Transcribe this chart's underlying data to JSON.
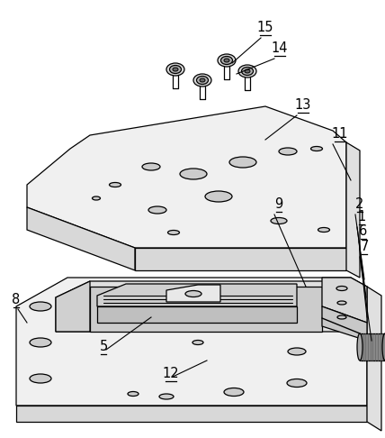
{
  "bg_color": "#ffffff",
  "line_color": "#000000",
  "upper_plate_color": "#f0f0f0",
  "upper_front_color": "#d8d8d8",
  "upper_side_color": "#e0e0e0",
  "lower_top_color": "#f0f0f0",
  "lower_front_color": "#d8d8d8",
  "lower_side_color": "#e0e0e0",
  "hole_color": "#cccccc",
  "inner_color": "#aaaaaa",
  "slot_color": "#bbbbbb",
  "knob_color": "#888888",
  "bracket_color": "#d8d8d8"
}
